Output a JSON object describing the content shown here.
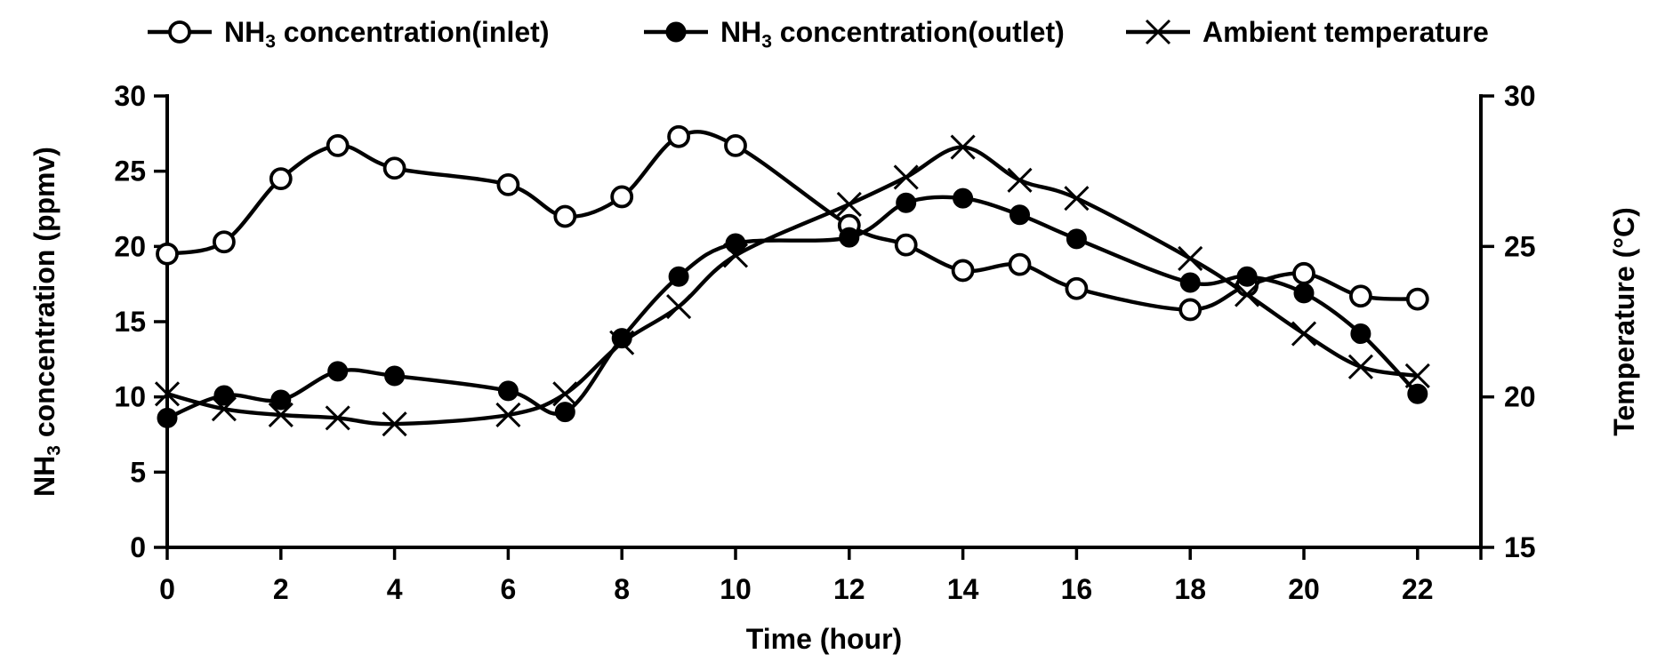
{
  "colors": {
    "foreground": "#000000",
    "background": "#ffffff"
  },
  "legend": {
    "items": [
      {
        "id": "inlet",
        "label": "NH₃ concentration(inlet)",
        "marker": "open-circle"
      },
      {
        "id": "outlet",
        "label": "NH₃ concentration(outlet)",
        "marker": "filled-circle"
      },
      {
        "id": "ambient",
        "label": "Ambient temperature",
        "marker": "x-cross"
      }
    ]
  },
  "chart_data": {
    "type": "line",
    "title": "",
    "xlabel": "Time (hour)",
    "ylabel_left": "NH₃ concentration (ppmv)",
    "ylabel_right": "Temperature (°C)",
    "grid": false,
    "legend_position": "top",
    "x": [
      0,
      1,
      2,
      3,
      4,
      6,
      7,
      8,
      9,
      10,
      12,
      13,
      14,
      15,
      16,
      18,
      19,
      20,
      21,
      22
    ],
    "x_axis": {
      "ticks": [
        0,
        2,
        4,
        6,
        8,
        10,
        12,
        14,
        16,
        18,
        20,
        22
      ],
      "range": [
        0,
        23.1
      ]
    },
    "y_left": {
      "label": "NH₃ concentration (ppmv)",
      "ticks": [
        0,
        5,
        10,
        15,
        20,
        25,
        30
      ],
      "range": [
        0,
        30
      ]
    },
    "y_right": {
      "label": "Temperature (°C)",
      "ticks": [
        15,
        20,
        25,
        30
      ],
      "range": [
        15,
        30
      ]
    },
    "series": [
      {
        "id": "inlet",
        "name": "NH₃ concentration(inlet)",
        "axis": "left",
        "marker": "open-circle",
        "values": [
          19.5,
          20.3,
          24.5,
          26.7,
          25.2,
          24.1,
          22.0,
          23.3,
          27.3,
          26.7,
          21.4,
          20.1,
          18.4,
          18.8,
          17.2,
          15.8,
          17.4,
          18.2,
          16.7,
          16.5
        ]
      },
      {
        "id": "outlet",
        "name": "NH₃ concentration(outlet)",
        "axis": "left",
        "marker": "filled-circle",
        "values": [
          8.6,
          10.1,
          9.8,
          11.7,
          11.4,
          10.4,
          9.0,
          13.9,
          18.0,
          20.2,
          20.6,
          22.9,
          23.2,
          22.1,
          20.5,
          17.6,
          18.0,
          16.9,
          14.2,
          10.2
        ]
      },
      {
        "id": "ambient",
        "name": "Ambient temperature",
        "axis": "right",
        "marker": "x-cross",
        "values": [
          20.1,
          19.6,
          19.4,
          19.3,
          19.1,
          19.4,
          20.1,
          21.8,
          23.0,
          24.7,
          26.4,
          27.3,
          28.3,
          27.2,
          26.6,
          24.6,
          23.4,
          22.1,
          21.0,
          20.7
        ]
      }
    ]
  }
}
